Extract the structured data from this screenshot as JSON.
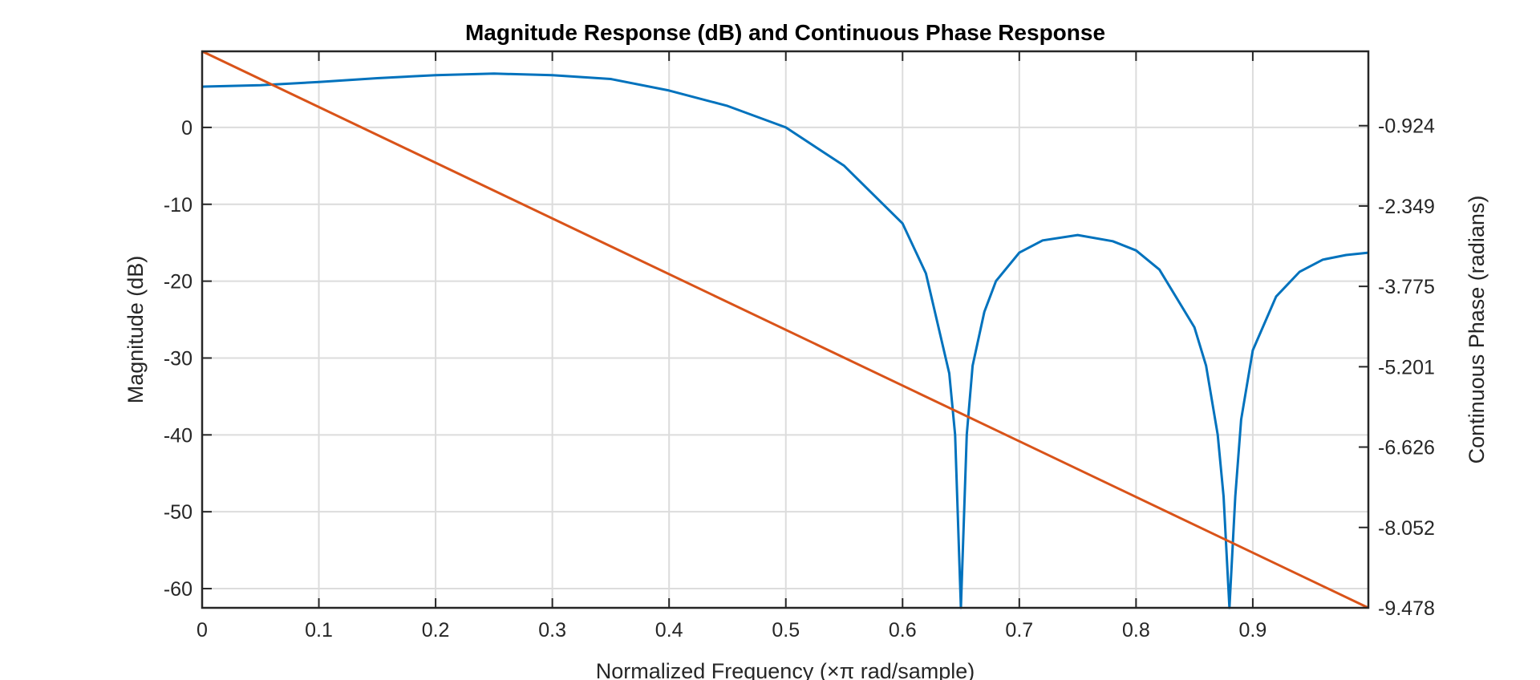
{
  "chart_data": {
    "type": "line",
    "title": "Magnitude Response (dB) and Continuous Phase Response",
    "xlabel": "Normalized Frequency (×π rad/sample)",
    "ylabel_left": "Magnitude (dB)",
    "ylabel_right": "Continuous Phase (radians)",
    "xlim": [
      0,
      0.999
    ],
    "ylim_left": [
      -62.5,
      9.9
    ],
    "ylim_right": [
      -9.478,
      0.395
    ],
    "xticks": [
      "0",
      "0.1",
      "0.2",
      "0.3",
      "0.4",
      "0.5",
      "0.6",
      "0.7",
      "0.8",
      "0.9"
    ],
    "xtick_values": [
      0,
      0.1,
      0.2,
      0.3,
      0.4,
      0.5,
      0.6,
      0.7,
      0.8,
      0.9
    ],
    "yticks_left": [
      "0",
      "-10",
      "-20",
      "-30",
      "-40",
      "-50",
      "-60"
    ],
    "ytick_values_left": [
      0,
      -10,
      -20,
      -30,
      -40,
      -50,
      -60
    ],
    "yticks_right": [
      "-0.924",
      "-2.349",
      "-3.775",
      "-5.201",
      "-6.626",
      "-8.052",
      "-9.478"
    ],
    "ytick_values_right": [
      -0.924,
      -2.349,
      -3.775,
      -5.201,
      -6.626,
      -8.052,
      -9.478
    ],
    "grid": true,
    "series": [
      {
        "axis": "left",
        "color": "#0072BD",
        "x": [
          0,
          0.05,
          0.1,
          0.15,
          0.2,
          0.25,
          0.3,
          0.35,
          0.4,
          0.45,
          0.5,
          0.55,
          0.6,
          0.62,
          0.64,
          0.645,
          0.65,
          0.655,
          0.66,
          0.67,
          0.68,
          0.7,
          0.72,
          0.75,
          0.78,
          0.8,
          0.82,
          0.85,
          0.86,
          0.87,
          0.875,
          0.88,
          0.885,
          0.89,
          0.9,
          0.92,
          0.94,
          0.96,
          0.98,
          0.999
        ],
        "y": [
          5.3,
          5.5,
          5.9,
          6.4,
          6.8,
          7.0,
          6.8,
          6.3,
          4.8,
          2.8,
          0.0,
          -5.0,
          -12.5,
          -19.0,
          -32.0,
          -40.0,
          -62.5,
          -40.0,
          -31.0,
          -24.0,
          -20.0,
          -16.3,
          -14.7,
          -14.0,
          -14.8,
          -16.0,
          -18.5,
          -26.0,
          -31.0,
          -40.0,
          -48.0,
          -62.5,
          -48.0,
          -38.0,
          -29.0,
          -22.0,
          -18.8,
          -17.2,
          -16.6,
          -16.3
        ]
      },
      {
        "axis": "right",
        "color": "#D95319",
        "x": [
          0,
          0.999
        ],
        "y": [
          0.395,
          -9.478
        ]
      }
    ]
  }
}
